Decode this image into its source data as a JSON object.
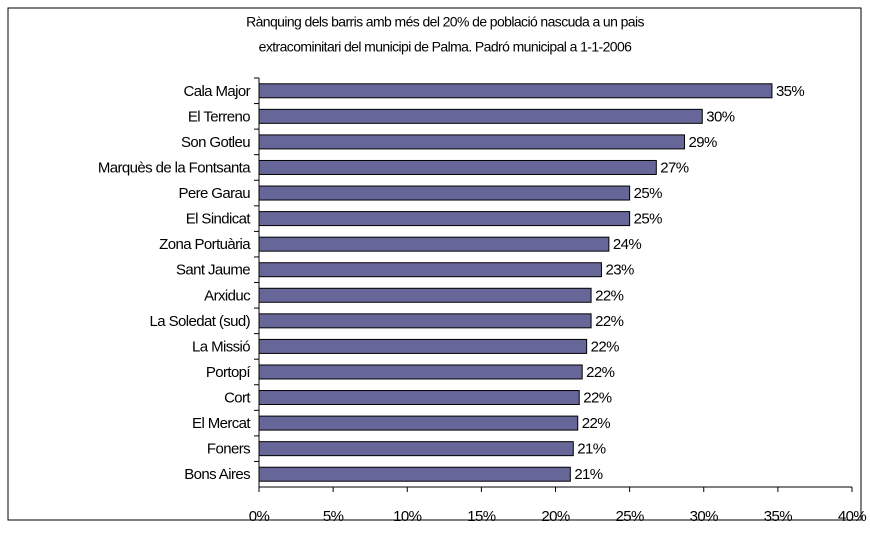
{
  "chart_data": {
    "type": "barh",
    "title": [
      "Rànquing dels barris amb més del 20% de població nascuda a un pais",
      "extracominitari del municipi de Palma. Padró municipal a 1-1-2006"
    ],
    "categories": [
      "Cala Major",
      "El Terreno",
      "Son Gotleu",
      "Marquès de la Fontsanta",
      "Pere Garau",
      "El Sindicat",
      "Zona Portuària",
      "Sant Jaume",
      "Arxiduc",
      "La Soledat (sud)",
      "La Missió",
      "Portopí",
      "Cort",
      "El Mercat",
      "Foners",
      "Bons Aires"
    ],
    "values": [
      34.6,
      29.9,
      28.7,
      26.8,
      25.0,
      25.0,
      23.6,
      23.1,
      22.4,
      22.4,
      22.1,
      21.8,
      21.6,
      21.5,
      21.2,
      21.0
    ],
    "value_labels": [
      "35%",
      "30%",
      "29%",
      "27%",
      "25%",
      "25%",
      "24%",
      "23%",
      "22%",
      "22%",
      "22%",
      "22%",
      "22%",
      "22%",
      "21%",
      "21%"
    ],
    "color": "#666699",
    "xlim": [
      0,
      40
    ],
    "xticks": [
      {
        "value": 0,
        "label": "0%"
      },
      {
        "value": 5,
        "label": "5%"
      },
      {
        "value": 10,
        "label": "10%"
      },
      {
        "value": 15,
        "label": "15%"
      },
      {
        "value": 20,
        "label": "20%"
      },
      {
        "value": 25,
        "label": "25%"
      },
      {
        "value": 30,
        "label": "30%"
      },
      {
        "value": 35,
        "label": "35%"
      },
      {
        "value": 40,
        "label": "40%"
      }
    ]
  }
}
